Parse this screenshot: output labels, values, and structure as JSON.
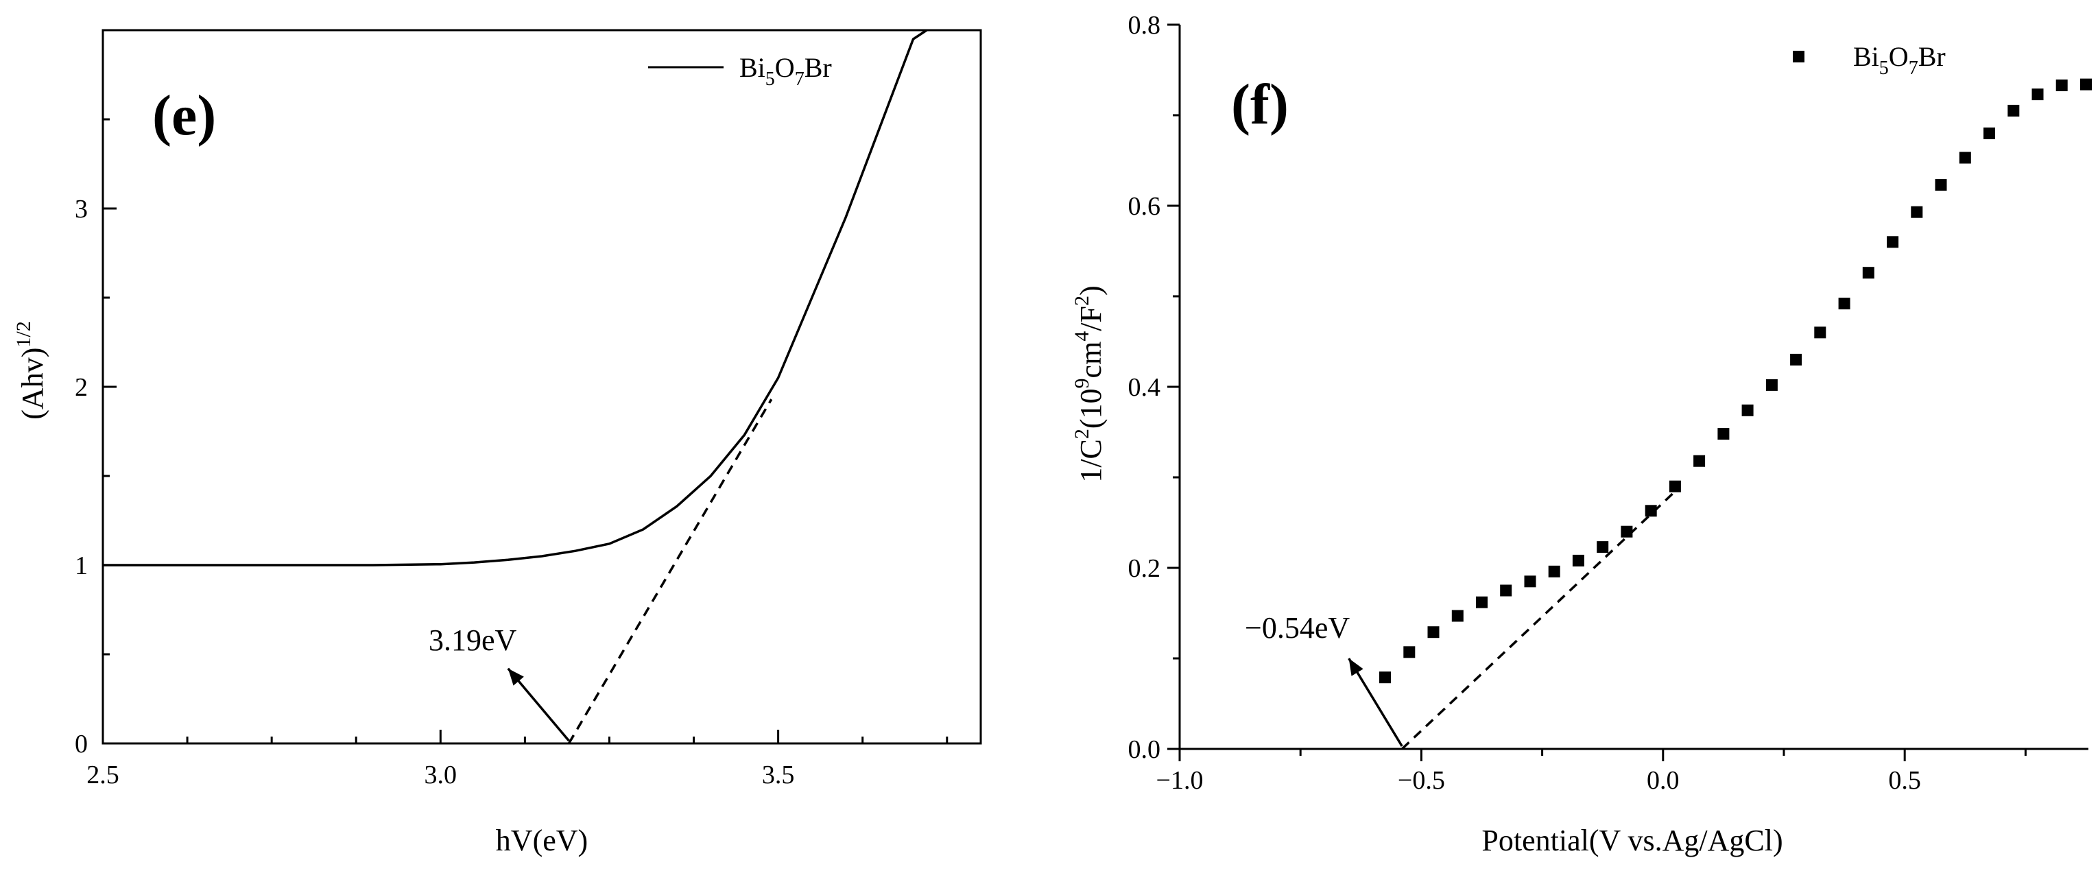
{
  "chart_data": [
    {
      "type": "line",
      "panel_label": "(e)",
      "xlabel": "hV(eV)",
      "ylabel_main": "(Ahv)",
      "ylabel_sup": "1/2",
      "xlim": [
        2.5,
        3.8
      ],
      "ylim": [
        0,
        4.0
      ],
      "xticks": [
        2.5,
        3.0,
        3.5
      ],
      "xtick_labels": [
        "2.5",
        "3.0",
        "3.5"
      ],
      "yticks": [
        0,
        1,
        2,
        3
      ],
      "ytick_labels": [
        "0",
        "1",
        "2",
        "3"
      ],
      "legend": {
        "name": "Bi5O7Br",
        "base": "Bi",
        "sub1": "5",
        "mid": "O",
        "sub2": "7",
        "tail": "Br",
        "position": "top-right"
      },
      "series": [
        {
          "name": "Bi5O7Br",
          "x": [
            2.5,
            2.6,
            2.7,
            2.8,
            2.9,
            3.0,
            3.05,
            3.1,
            3.15,
            3.2,
            3.25,
            3.3,
            3.35,
            3.4,
            3.45,
            3.5,
            3.55,
            3.6,
            3.65,
            3.7,
            3.72
          ],
          "y": [
            1.0,
            1.0,
            1.0,
            1.0,
            1.0,
            1.005,
            1.015,
            1.03,
            1.05,
            1.08,
            1.12,
            1.2,
            1.33,
            1.5,
            1.73,
            2.05,
            2.5,
            2.95,
            3.45,
            3.95,
            4.0
          ]
        }
      ],
      "tangent": {
        "x": [
          3.19,
          3.49
        ],
        "y": [
          0.0,
          1.93
        ]
      },
      "annotation": {
        "text": "3.19eV",
        "arrow_from": [
          3.19,
          0.0
        ],
        "arrow_to": [
          3.1,
          0.42
        ]
      }
    },
    {
      "type": "scatter",
      "panel_label": "(f)",
      "xlabel": "Potential(V vs.Ag/AgCl)",
      "ylabel_pre": "1/C",
      "ylabel_sup1": "2",
      "ylabel_mid1": "(10",
      "ylabel_sup2": "9",
      "ylabel_mid2": "cm",
      "ylabel_sup3": "4",
      "ylabel_mid3": "/F",
      "ylabel_sup4": "2",
      "ylabel_post": ")",
      "xlim": [
        -1.0,
        0.88
      ],
      "ylim": [
        0.0,
        0.8
      ],
      "xticks": [
        -1.0,
        -0.5,
        0.0,
        0.5
      ],
      "xtick_labels": [
        "−1.0",
        "−0.5",
        "0.0",
        "0.5"
      ],
      "yticks": [
        0.0,
        0.2,
        0.4,
        0.6,
        0.8
      ],
      "ytick_labels": [
        "0.0",
        "0.2",
        "0.4",
        "0.6",
        "0.8"
      ],
      "legend": {
        "name": "Bi5O7Br",
        "base": "Bi",
        "sub1": "5",
        "mid": "O",
        "sub2": "7",
        "tail": "Br",
        "position": "top-right"
      },
      "series": [
        {
          "name": "Bi5O7Br",
          "x": [
            -0.575,
            -0.525,
            -0.475,
            -0.425,
            -0.375,
            -0.325,
            -0.275,
            -0.225,
            -0.175,
            -0.125,
            -0.075,
            -0.025,
            0.025,
            0.075,
            0.125,
            0.175,
            0.225,
            0.275,
            0.325,
            0.375,
            0.425,
            0.475,
            0.525,
            0.575,
            0.625,
            0.675,
            0.725,
            0.775,
            0.825,
            0.875
          ],
          "y": [
            0.079,
            0.107,
            0.129,
            0.147,
            0.162,
            0.175,
            0.185,
            0.196,
            0.208,
            0.223,
            0.24,
            0.263,
            0.29,
            0.318,
            0.348,
            0.374,
            0.402,
            0.43,
            0.46,
            0.492,
            0.526,
            0.56,
            0.593,
            0.623,
            0.653,
            0.68,
            0.705,
            0.723,
            0.733,
            0.734
          ]
        }
      ],
      "tangent": {
        "x": [
          -0.54,
          0.02
        ],
        "y": [
          0.0,
          0.282
        ]
      },
      "annotation": {
        "text": "−0.54eV",
        "arrow_from": [
          -0.54,
          0.0
        ],
        "arrow_to": [
          -0.65,
          0.1
        ]
      }
    }
  ]
}
